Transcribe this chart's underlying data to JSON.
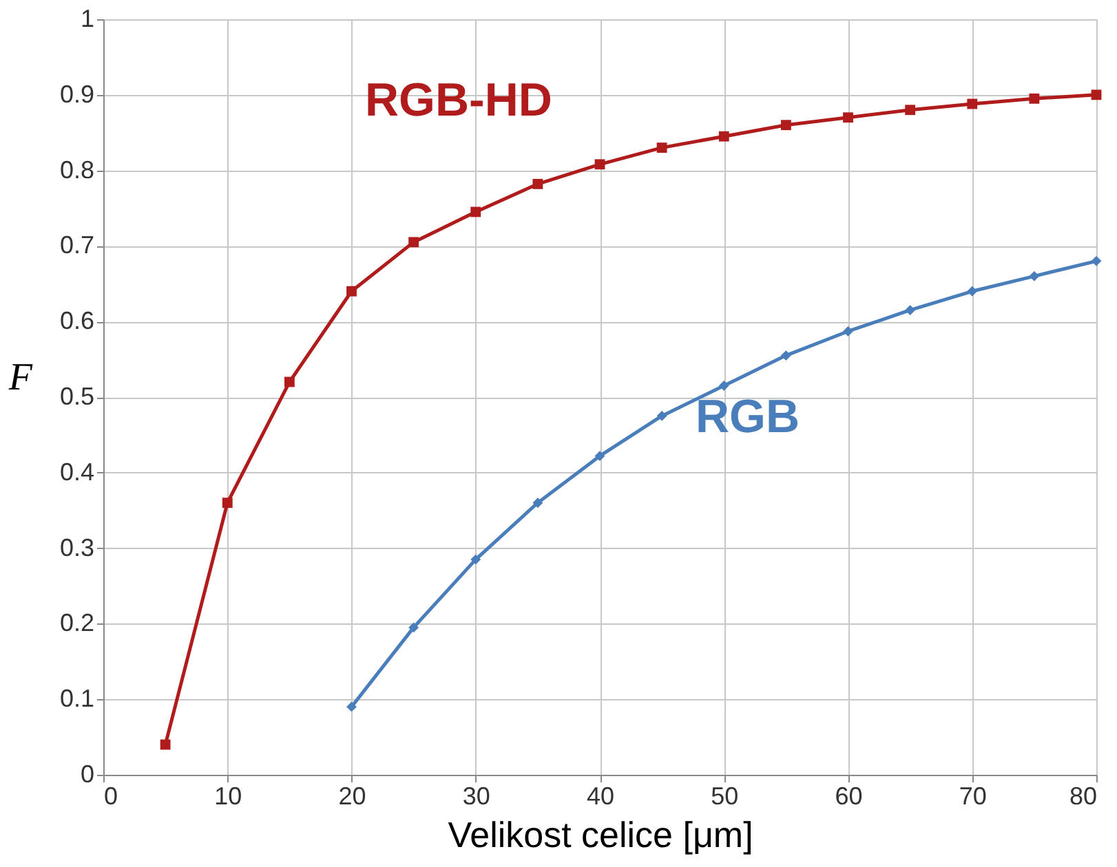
{
  "chart_data": {
    "type": "line",
    "xlabel": "Velikost celice [μm]",
    "ylabel": "F",
    "xlim": [
      0,
      80
    ],
    "xticks": [
      0,
      10,
      20,
      30,
      40,
      50,
      60,
      70,
      80
    ],
    "ylim": [
      0,
      1
    ],
    "yticks": [
      0,
      0.1,
      0.2,
      0.3,
      0.4,
      0.5,
      0.6,
      0.7,
      0.8,
      0.9,
      1
    ],
    "grid": true,
    "legend": false,
    "line_style": "solid",
    "series": [
      {
        "name": "RGB-HD",
        "color": "#b01c1c",
        "marker": "square",
        "x": [
          5,
          10,
          15,
          20,
          25,
          30,
          35,
          40,
          45,
          50,
          55,
          60,
          65,
          70,
          75,
          80
        ],
        "values": [
          0.04,
          0.36,
          0.52,
          0.64,
          0.705,
          0.745,
          0.782,
          0.808,
          0.83,
          0.845,
          0.86,
          0.87,
          0.88,
          0.888,
          0.895,
          0.9
        ]
      },
      {
        "name": "RGB",
        "color": "#4a7ebb",
        "marker": "diamond",
        "x": [
          20,
          25,
          30,
          35,
          40,
          45,
          50,
          55,
          60,
          65,
          70,
          75,
          80
        ],
        "values": [
          0.09,
          0.195,
          0.285,
          0.36,
          0.422,
          0.475,
          0.515,
          0.555,
          0.587,
          0.615,
          0.64,
          0.66,
          0.68
        ]
      }
    ]
  }
}
